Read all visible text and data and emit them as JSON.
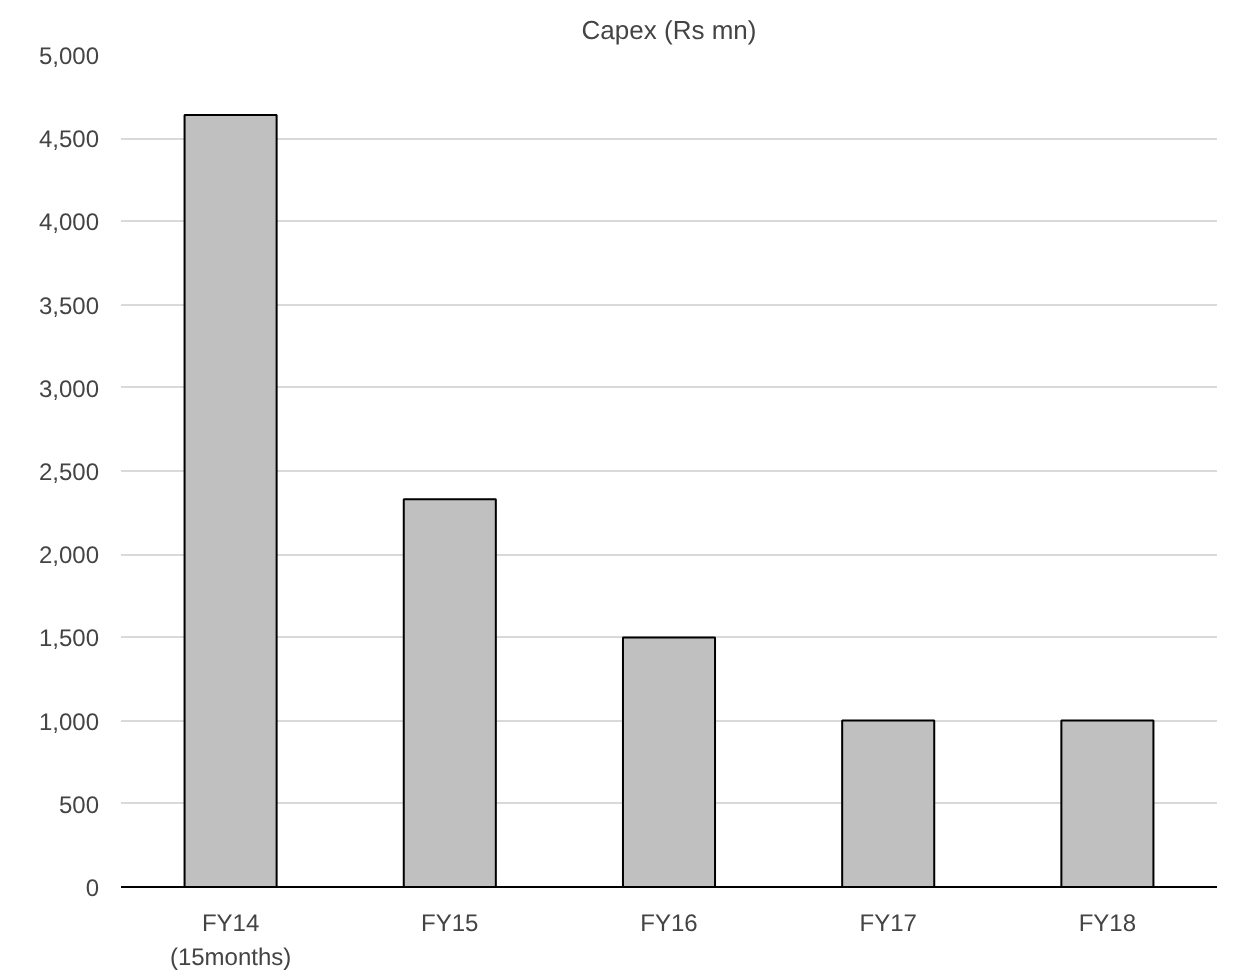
{
  "chart_data": {
    "type": "bar",
    "title": "Capex (Rs mn)",
    "categories": [
      "FY14\n(15months)",
      "FY15",
      "FY16",
      "FY17",
      "FY18"
    ],
    "values": [
      4640,
      2330,
      1500,
      1000,
      1000
    ],
    "color": "#c0c0c0",
    "ylim": [
      0,
      5000
    ],
    "yticks": [
      {
        "value": 0,
        "label": "0"
      },
      {
        "value": 500,
        "label": "500"
      },
      {
        "value": 1000,
        "label": "1,000"
      },
      {
        "value": 1500,
        "label": "1,500"
      },
      {
        "value": 2000,
        "label": "2,000"
      },
      {
        "value": 2500,
        "label": "2,500"
      },
      {
        "value": 3000,
        "label": "3,000"
      },
      {
        "value": 3500,
        "label": "3,500"
      },
      {
        "value": 4000,
        "label": "4,000"
      },
      {
        "value": 4500,
        "label": "4,500"
      },
      {
        "value": 5000,
        "label": "5,000"
      }
    ],
    "grid": "y"
  }
}
